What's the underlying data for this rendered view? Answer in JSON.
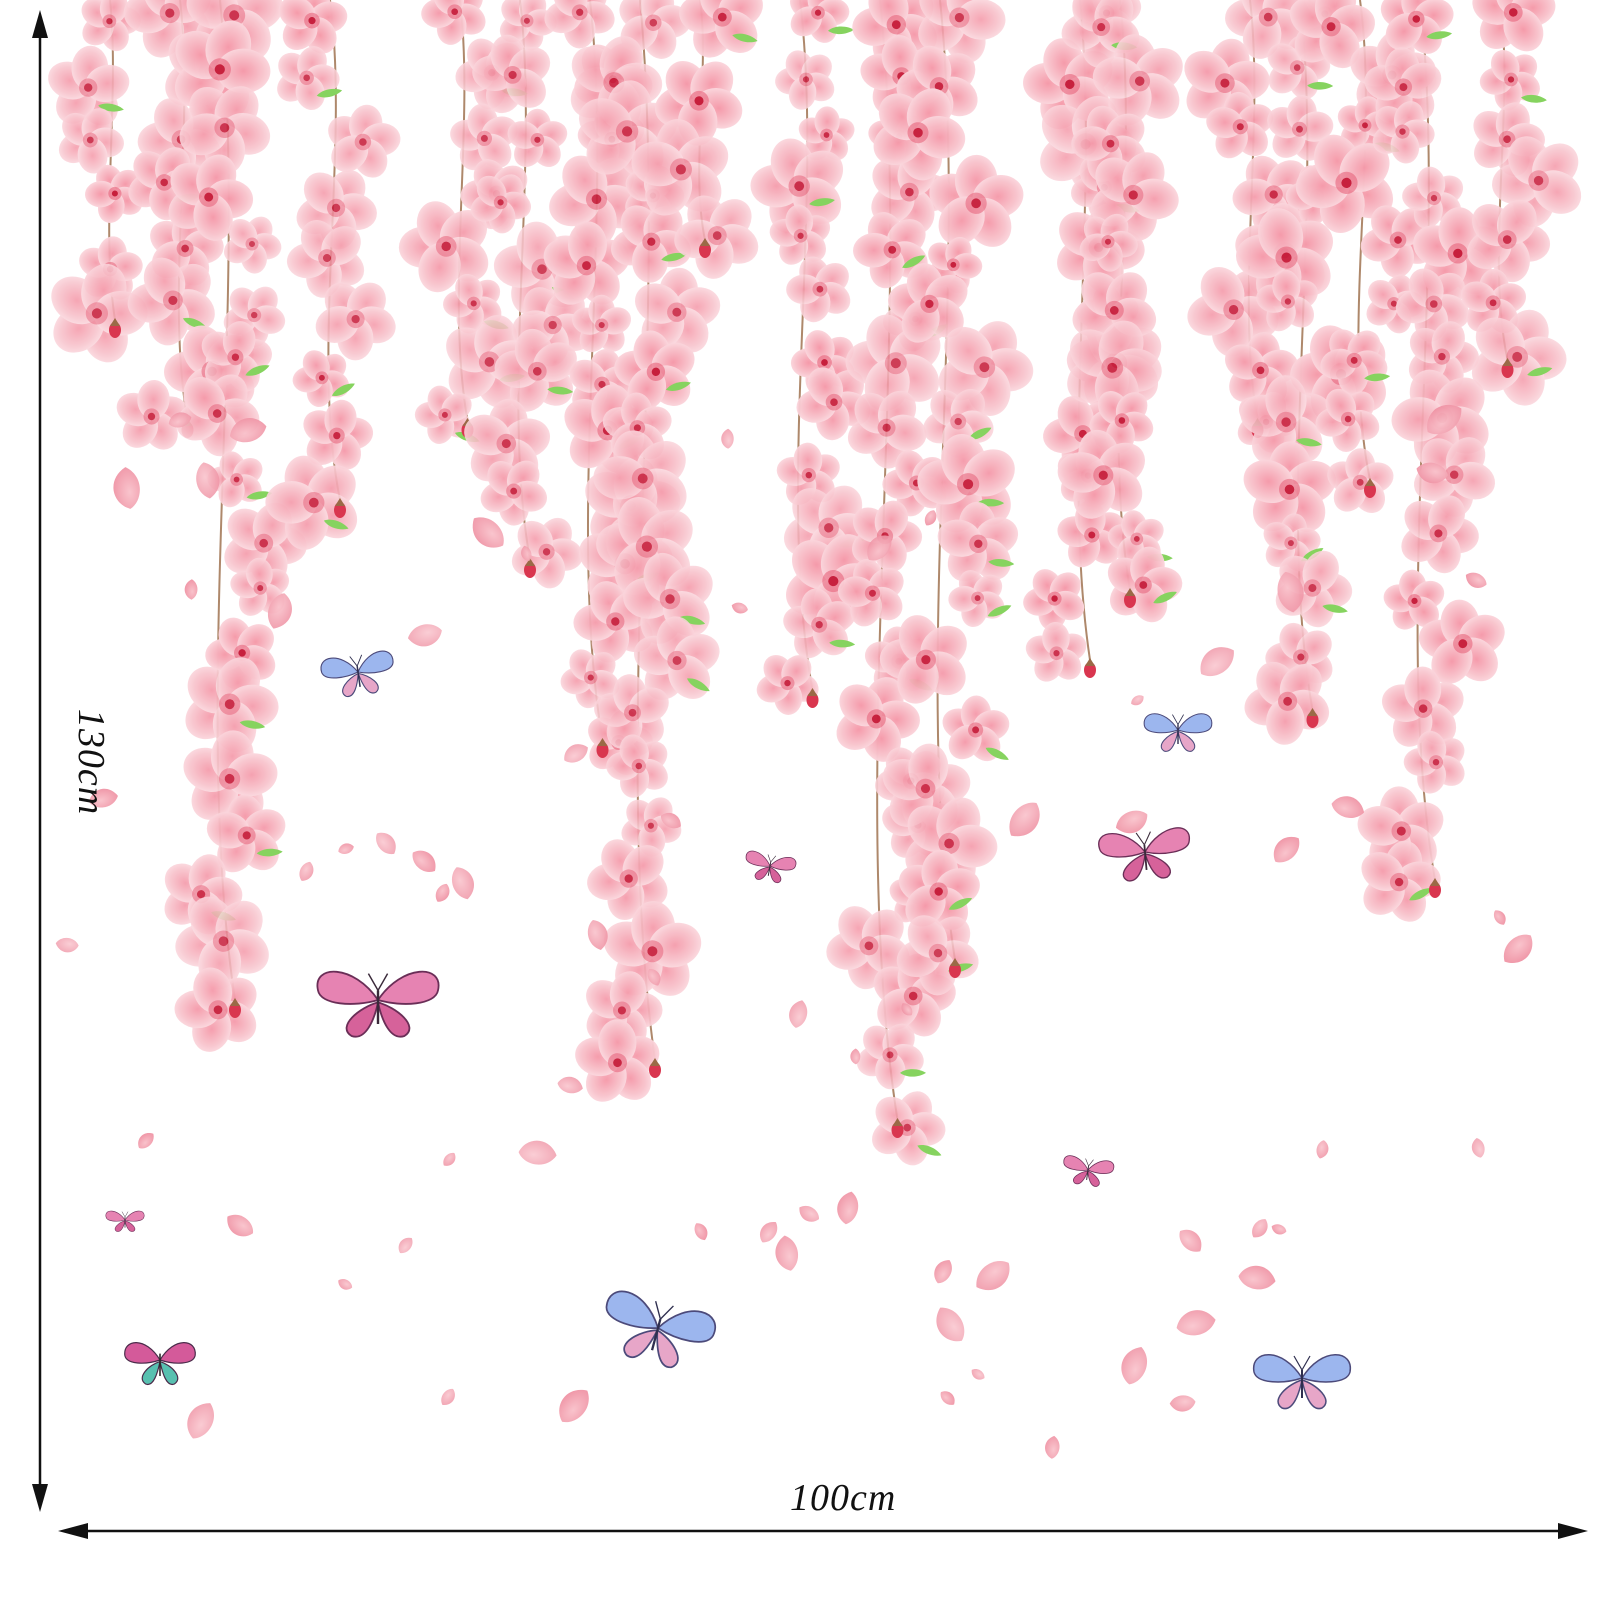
{
  "image": {
    "subject": "cherry-blossom-wall-decal",
    "colors": {
      "petal_light": "#f8cfd6",
      "petal_mid": "#f3a9b6",
      "petal_deep": "#ec8fa0",
      "flower_center": "#d6304a",
      "stem": "#9a6a46",
      "leaf": "#7fcf5a",
      "line": "#111111",
      "butterfly_pink": "#e27aa8",
      "butterfly_blue": "#8fb1ea",
      "butterfly_teal": "#58c0b0"
    }
  },
  "dimensions": {
    "height_label": "130cm",
    "width_label": "100cm"
  }
}
